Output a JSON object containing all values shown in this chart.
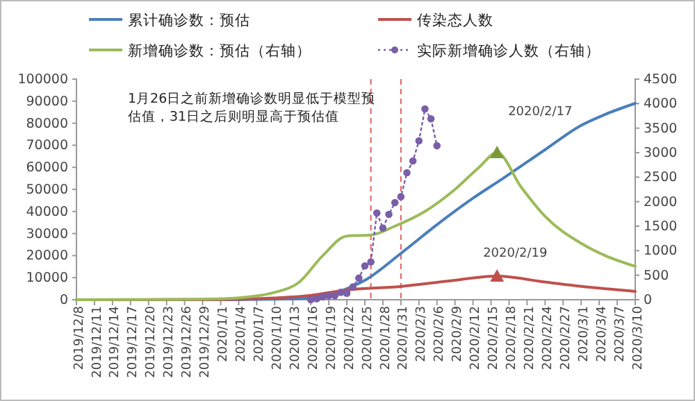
{
  "chart_data": {
    "type": "line",
    "xlim": [
      "2019-12-08",
      "2020-03-10"
    ],
    "xticks": [
      {
        "value": "2019-12-08",
        "label": "2019/12/8"
      },
      {
        "value": "2019-12-11",
        "label": "2019/12/11"
      },
      {
        "value": "2019-12-14",
        "label": "2019/12/14"
      },
      {
        "value": "2019-12-17",
        "label": "2019/12/17"
      },
      {
        "value": "2019-12-20",
        "label": "2019/12/20"
      },
      {
        "value": "2019-12-23",
        "label": "2019/12/23"
      },
      {
        "value": "2019-12-26",
        "label": "2019/12/26"
      },
      {
        "value": "2019-12-29",
        "label": "2019/12/29"
      },
      {
        "value": "2020-01-01",
        "label": "2020/1/1"
      },
      {
        "value": "2020-01-04",
        "label": "2020/1/4"
      },
      {
        "value": "2020-01-07",
        "label": "2020/1/7"
      },
      {
        "value": "2020-01-10",
        "label": "2020/1/10"
      },
      {
        "value": "2020-01-13",
        "label": "2020/1/13"
      },
      {
        "value": "2020-01-16",
        "label": "2020/1/16"
      },
      {
        "value": "2020-01-19",
        "label": "2020/1/19"
      },
      {
        "value": "2020-01-22",
        "label": "2020/1/22"
      },
      {
        "value": "2020-01-25",
        "label": "2020/1/25"
      },
      {
        "value": "2020-01-28",
        "label": "2020/1/28"
      },
      {
        "value": "2020-01-31",
        "label": "2020/1/31"
      },
      {
        "value": "2020-02-03",
        "label": "2020/2/3"
      },
      {
        "value": "2020-02-06",
        "label": "2020/2/6"
      },
      {
        "value": "2020-02-09",
        "label": "2020/2/9"
      },
      {
        "value": "2020-02-12",
        "label": "2020/2/12"
      },
      {
        "value": "2020-02-15",
        "label": "2020/2/15"
      },
      {
        "value": "2020-02-18",
        "label": "2020/2/18"
      },
      {
        "value": "2020-02-21",
        "label": "2020/2/21"
      },
      {
        "value": "2020-02-24",
        "label": "2020/2/24"
      },
      {
        "value": "2020-02-27",
        "label": "2020/2/27"
      },
      {
        "value": "2020-03-01",
        "label": "2020/3/1"
      },
      {
        "value": "2020-03-04",
        "label": "2020/3/4"
      },
      {
        "value": "2020-03-07",
        "label": "2020/3/7"
      },
      {
        "value": "2020-03-10",
        "label": "2020/3/10"
      }
    ],
    "ylim": [
      0,
      100000
    ],
    "yticks": [
      0,
      10000,
      20000,
      30000,
      40000,
      50000,
      60000,
      70000,
      80000,
      90000,
      100000
    ],
    "y2lim": [
      0,
      4500
    ],
    "y2ticks": [
      0,
      500,
      1000,
      1500,
      2000,
      2500,
      3000,
      3500,
      4000,
      4500
    ],
    "legend": "top",
    "grid": false,
    "series": [
      {
        "name": "累计确诊数：预估",
        "color": "#4a7ebb",
        "marker": "none",
        "line_style": "solid",
        "x": [
          "2019-12-08",
          "2020-01-01",
          "2020-01-10",
          "2020-01-16",
          "2020-01-20",
          "2020-01-22",
          "2020-01-25",
          "2020-01-31",
          "2020-02-06",
          "2020-02-12",
          "2020-02-17",
          "2020-02-24",
          "2020-03-01",
          "2020-03-05",
          "2020-03-10"
        ],
        "values": [
          0,
          0,
          200,
          800,
          3000,
          5000,
          8800,
          21000,
          34000,
          46000,
          55000,
          68000,
          79000,
          84000,
          89000
        ]
      },
      {
        "name": "传染态人数",
        "color": "#c0504d",
        "marker": "none",
        "line_style": "solid",
        "x": [
          "2019-12-08",
          "2020-01-01",
          "2020-01-10",
          "2020-01-16",
          "2020-01-22",
          "2020-01-31",
          "2020-02-08",
          "2020-02-16",
          "2020-02-24",
          "2020-03-03",
          "2020-03-10"
        ],
        "values": [
          0,
          100,
          800,
          2000,
          4400,
          6000,
          8500,
          10700,
          8000,
          5500,
          3800
        ]
      },
      {
        "name": "新增确诊数：预估（右轴）",
        "color": "#9bbb59",
        "axis": "y2",
        "marker": "none",
        "line_style": "solid",
        "x": [
          "2019-12-08",
          "2019-12-29",
          "2020-01-05",
          "2020-01-10",
          "2020-01-14",
          "2020-01-18",
          "2020-01-22",
          "2020-01-26",
          "2020-01-30",
          "2020-02-04",
          "2020-02-09",
          "2020-02-13",
          "2020-02-16",
          "2020-02-20",
          "2020-02-24",
          "2020-03-01",
          "2020-03-05",
          "2020-03-10"
        ],
        "values": [
          0,
          10,
          50,
          150,
          350,
          900,
          1300,
          1320,
          1500,
          1800,
          2250,
          2700,
          3000,
          2300,
          1700,
          1150,
          900,
          680
        ]
      },
      {
        "name": "实际新增确诊人数（右轴）",
        "color": "#7a5fa8",
        "axis": "y2",
        "type": "line",
        "marker": "circle",
        "line_style": "dotted",
        "x": [
          "2020-01-16",
          "2020-01-17",
          "2020-01-18",
          "2020-01-19",
          "2020-01-20",
          "2020-01-21",
          "2020-01-22",
          "2020-01-23",
          "2020-01-24",
          "2020-01-25",
          "2020-01-26",
          "2020-01-27",
          "2020-01-28",
          "2020-01-29",
          "2020-01-30",
          "2020-01-31",
          "2020-02-01",
          "2020-02-02",
          "2020-02-03",
          "2020-02-04",
          "2020-02-05",
          "2020-02-06"
        ],
        "values": [
          0,
          20,
          60,
          80,
          80,
          150,
          130,
          260,
          440,
          690,
          770,
          1770,
          1460,
          1740,
          1980,
          2100,
          2590,
          2830,
          3240,
          3890,
          3690,
          3140
        ]
      }
    ],
    "ref_lines": [
      {
        "axis": "x",
        "value": "2020-01-26",
        "color": "#e06060",
        "line_style": "dashed"
      },
      {
        "axis": "x",
        "value": "2020-01-31",
        "color": "#e06060",
        "line_style": "dashed"
      }
    ],
    "annotations": [
      "1月26日之前新增确诊数明显低于模型预估值，31日之后则明显高于预估值",
      {
        "text": "2020/2/17",
        "x": "2020-02-16",
        "y": 66700
      },
      {
        "text": "2020/2/19",
        "x": "2020-02-16",
        "y": 10700
      }
    ]
  }
}
